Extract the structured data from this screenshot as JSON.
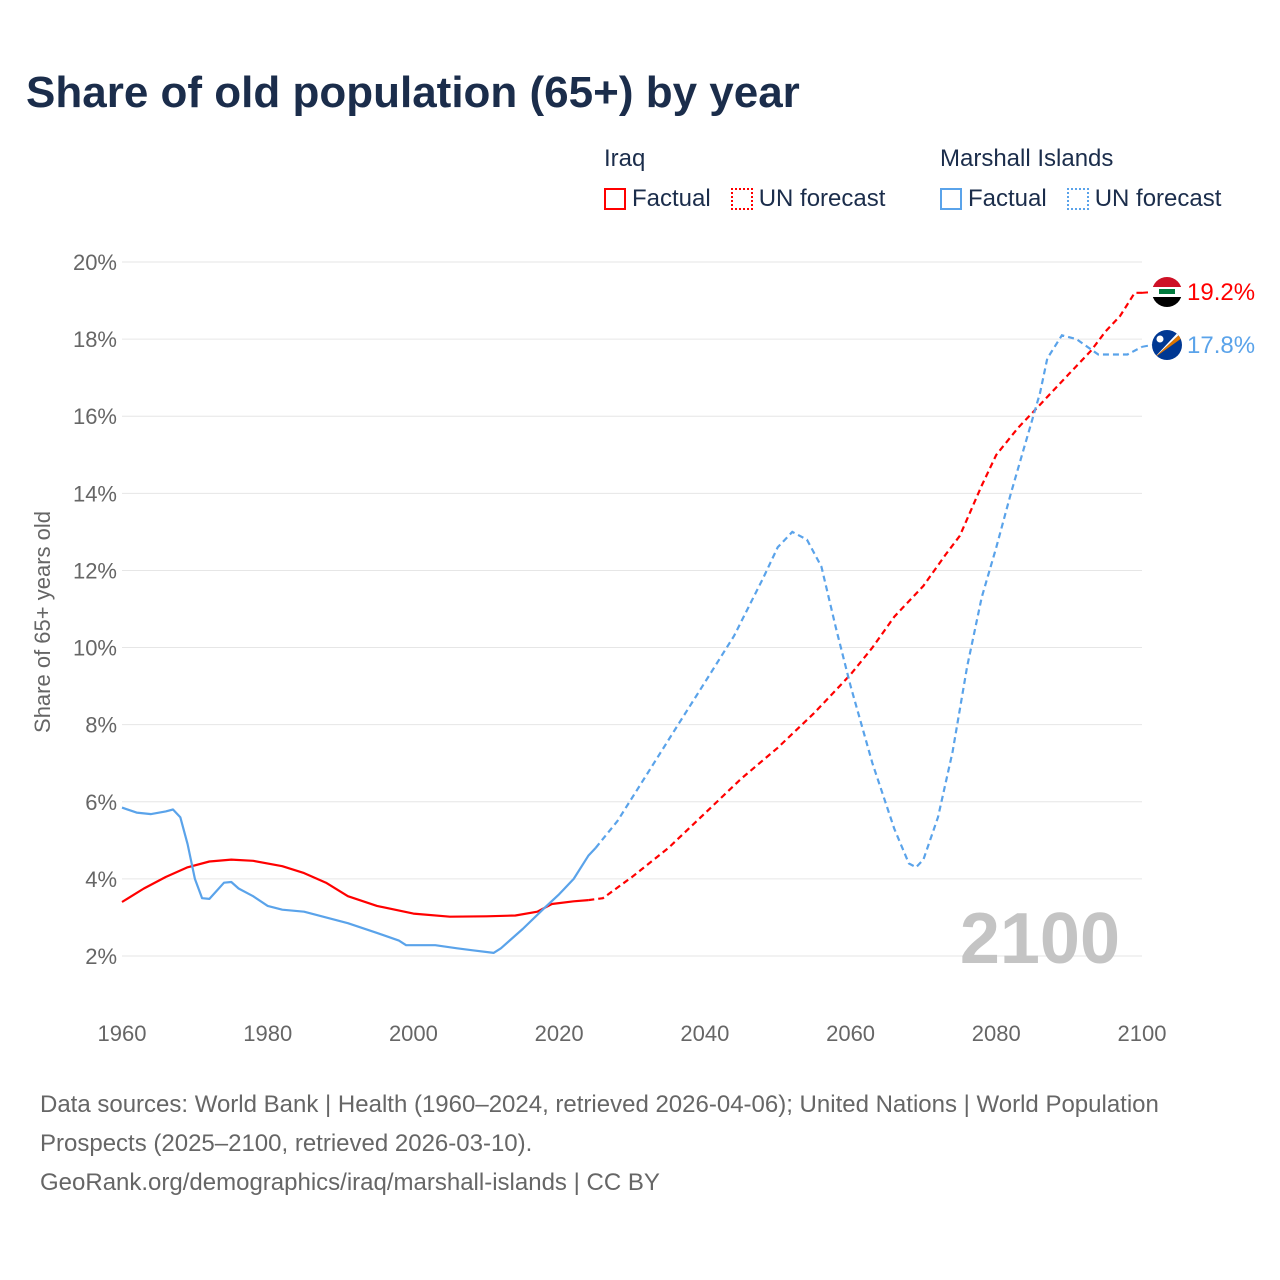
{
  "chart_data": {
    "type": "line",
    "title": "Share of old population (65+) by year",
    "xlabel": "",
    "ylabel": "Share of 65+ years old",
    "xlim": [
      1960,
      2100
    ],
    "ylim": [
      1,
      20
    ],
    "yticks": [
      2,
      4,
      6,
      8,
      10,
      12,
      14,
      16,
      18,
      20
    ],
    "ytick_labels": [
      "2%",
      "4%",
      "6%",
      "8%",
      "10%",
      "12%",
      "14%",
      "16%",
      "18%",
      "20%"
    ],
    "xticks": [
      1960,
      1980,
      2000,
      2020,
      2040,
      2060,
      2080,
      2100
    ],
    "xtick_labels": [
      "1960",
      "1980",
      "2000",
      "2020",
      "2040",
      "2060",
      "2080",
      "2100"
    ],
    "grid": true,
    "year_watermark": "2100",
    "legend": {
      "placement": "top-right",
      "groups": [
        {
          "name": "Iraq",
          "factual": "Factual",
          "forecast": "UN forecast"
        },
        {
          "name": "Marshall Islands",
          "factual": "Factual",
          "forecast": "UN forecast"
        }
      ]
    },
    "series": [
      {
        "name": "Iraq",
        "color": "#ff0000",
        "end_label": "19.2%",
        "flag": "iraq-flag",
        "factual": {
          "x": [
            1960,
            1963,
            1966,
            1969,
            1972,
            1975,
            1978,
            1982,
            1985,
            1988,
            1991,
            1995,
            2000,
            2005,
            2010,
            2014,
            2017,
            2019,
            2022,
            2024
          ],
          "y": [
            3.4,
            3.75,
            4.05,
            4.3,
            4.45,
            4.5,
            4.47,
            4.33,
            4.15,
            3.9,
            3.55,
            3.3,
            3.1,
            3.02,
            3.03,
            3.05,
            3.15,
            3.35,
            3.42,
            3.45
          ]
        },
        "forecast": {
          "x": [
            2024,
            2026,
            2030,
            2035,
            2040,
            2045,
            2050,
            2055,
            2060,
            2063,
            2066,
            2070,
            2073,
            2075,
            2078,
            2080,
            2083,
            2086,
            2090,
            2093,
            2095,
            2097,
            2099,
            2100
          ],
          "y": [
            3.45,
            3.5,
            4.05,
            4.8,
            5.7,
            6.6,
            7.4,
            8.3,
            9.3,
            10.0,
            10.8,
            11.6,
            12.4,
            12.9,
            14.2,
            15.0,
            15.7,
            16.3,
            17.1,
            17.7,
            18.2,
            18.6,
            19.2,
            19.2
          ]
        }
      },
      {
        "name": "Marshall Islands",
        "color": "#5aa3ea",
        "end_label": "17.8%",
        "flag": "marshall-islands-flag",
        "factual": {
          "x": [
            1960,
            1962,
            1964,
            1966,
            1967,
            1968,
            1969,
            1970,
            1971,
            1972,
            1974,
            1975,
            1976,
            1978,
            1980,
            1982,
            1985,
            1988,
            1991,
            1995,
            1998,
            1999,
            2001,
            2003,
            2006,
            2008,
            2011,
            2012,
            2015,
            2018,
            2020,
            2022,
            2024,
            2025
          ],
          "y": [
            5.85,
            5.72,
            5.68,
            5.75,
            5.8,
            5.6,
            4.9,
            4.0,
            3.5,
            3.48,
            3.9,
            3.92,
            3.75,
            3.55,
            3.3,
            3.2,
            3.15,
            3.0,
            2.85,
            2.6,
            2.4,
            2.28,
            2.28,
            2.28,
            2.2,
            2.15,
            2.08,
            2.2,
            2.7,
            3.25,
            3.6,
            4.0,
            4.6,
            4.8
          ]
        },
        "forecast": {
          "x": [
            2025,
            2028,
            2032,
            2036,
            2040,
            2044,
            2048,
            2050,
            2052,
            2054,
            2056,
            2058,
            2060,
            2063,
            2066,
            2068,
            2069,
            2070,
            2072,
            2074,
            2076,
            2078,
            2080,
            2082,
            2084,
            2086,
            2087,
            2089,
            2091,
            2094,
            2098,
            2100
          ],
          "y": [
            4.8,
            5.5,
            6.7,
            7.9,
            9.1,
            10.3,
            11.8,
            12.6,
            13.0,
            12.8,
            12.1,
            10.5,
            9.0,
            7.0,
            5.3,
            4.4,
            4.3,
            4.5,
            5.6,
            7.3,
            9.5,
            11.3,
            12.6,
            14.0,
            15.3,
            16.6,
            17.5,
            18.1,
            18.0,
            17.6,
            17.6,
            17.8
          ]
        }
      }
    ]
  },
  "footer": {
    "line1": "Data sources: World Bank | Health (1960–2024, retrieved 2026-04-06); United Nations | World Population Prospects (2025–2100, retrieved 2026-03-10).",
    "line2": "GeoRank.org/demographics/iraq/marshall-islands | CC BY"
  }
}
